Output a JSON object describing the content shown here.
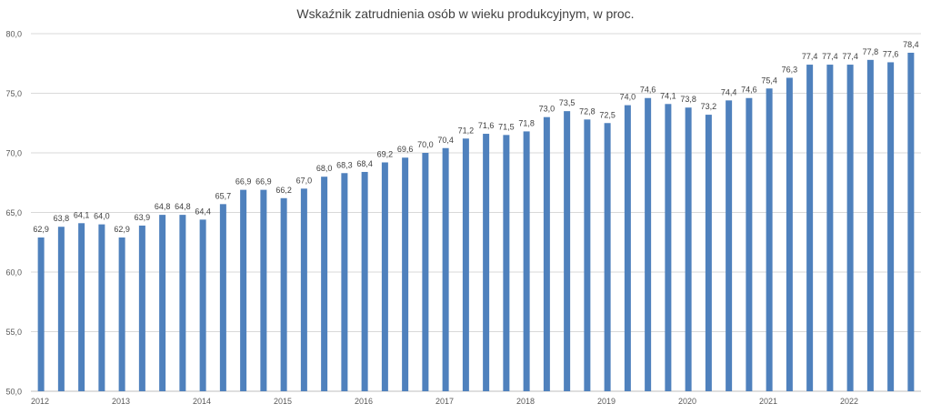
{
  "chart_data": {
    "type": "bar",
    "title": "Wskaźnik zatrudnienia osób w wieku produkcyjnym, w proc.",
    "xlabel": "",
    "ylabel": "",
    "ylim": [
      50,
      80
    ],
    "yticks": [
      "50,0",
      "55,0",
      "60,0",
      "65,0",
      "70,0",
      "75,0",
      "80,0"
    ],
    "ytick_values": [
      50,
      55,
      60,
      65,
      70,
      75,
      80
    ],
    "grid": true,
    "bar_color": "#4F81BD",
    "x_year_labels": [
      "2012",
      "2013",
      "2014",
      "2015",
      "2016",
      "2017",
      "2018",
      "2019",
      "2020",
      "2021",
      "2022"
    ],
    "values": [
      62.9,
      63.8,
      64.1,
      64.0,
      62.9,
      63.9,
      64.8,
      64.8,
      64.4,
      65.7,
      66.9,
      66.9,
      66.2,
      67.0,
      68.0,
      68.3,
      68.4,
      69.2,
      69.6,
      70.0,
      70.4,
      71.2,
      71.6,
      71.5,
      71.8,
      73.0,
      73.5,
      72.8,
      72.5,
      74.0,
      74.6,
      74.1,
      73.8,
      73.2,
      74.4,
      74.6,
      75.4,
      76.3,
      77.4,
      77.4,
      77.4,
      77.8,
      77.6,
      78.4
    ],
    "data_labels": [
      "62,9",
      "63,8",
      "64,1",
      "64,0",
      "62,9",
      "63,9",
      "64,8",
      "64,8",
      "64,4",
      "65,7",
      "66,9",
      "66,9",
      "66,2",
      "67,0",
      "68,0",
      "68,3",
      "68,4",
      "69,2",
      "69,6",
      "70,0",
      "70,4",
      "71,2",
      "71,6",
      "71,5",
      "71,8",
      "73,0",
      "73,5",
      "72,8",
      "72,5",
      "74,0",
      "74,6",
      "74,1",
      "73,8",
      "73,2",
      "74,4",
      "74,6",
      "75,4",
      "76,3",
      "77,4",
      "77,4",
      "77,4",
      "77,8",
      "77,6",
      "78,4"
    ]
  }
}
